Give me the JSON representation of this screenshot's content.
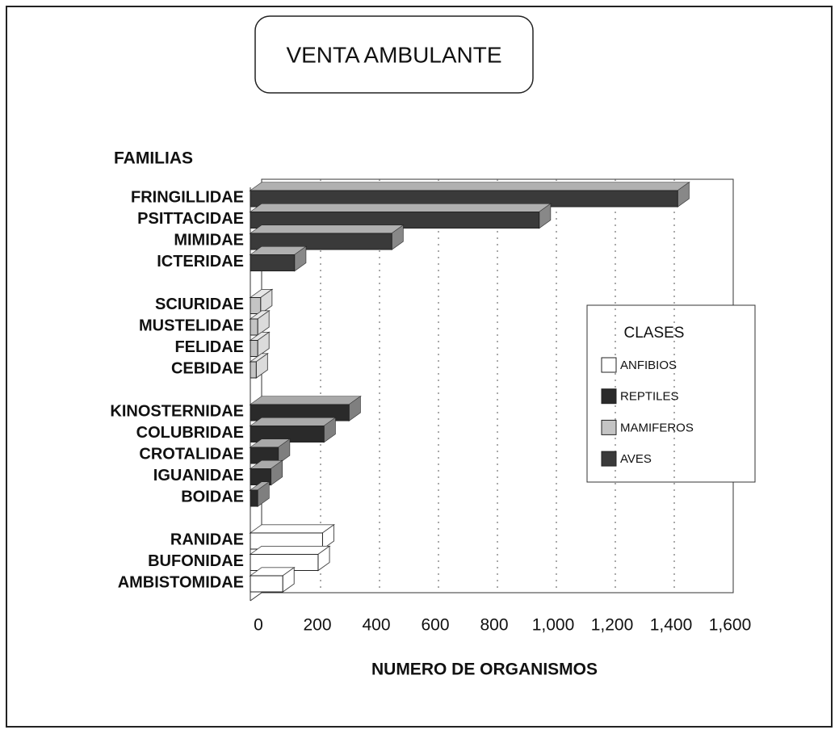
{
  "chart_data": {
    "type": "bar3d_horizontal",
    "title": "VENTA AMBULANTE",
    "ylabel": "FAMILIAS",
    "xlabel": "NUMERO DE ORGANISMOS",
    "legend_title": "CLASES",
    "legend": "right",
    "categories": [
      "FRINGILLIDAE",
      "PSITTACIDAE",
      "MIMIDAE",
      "ICTERIDAE",
      null,
      "SCIURIDAE",
      "MUSTELIDAE",
      "FELIDAE",
      "CEBIDAE",
      null,
      "KINOSTERNIDAE",
      "COLUBRIDAE",
      "CROTALIDAE",
      "IGUANIDAE",
      "BOIDAE",
      null,
      "RANIDAE",
      "BUFONIDAE",
      "AMBISTOMIDAE"
    ],
    "series": [
      {
        "name": "ANFIBIOS",
        "color": "#ffffff",
        "values": [
          null,
          null,
          null,
          null,
          null,
          null,
          null,
          null,
          null,
          null,
          null,
          null,
          null,
          null,
          null,
          null,
          245,
          230,
          110
        ]
      },
      {
        "name": "REPTILES",
        "color": "#2a2a2a",
        "values": [
          null,
          null,
          null,
          null,
          null,
          null,
          null,
          null,
          null,
          null,
          335,
          250,
          95,
          70,
          25,
          null,
          null,
          null,
          null
        ]
      },
      {
        "name": "MAMIFEROS",
        "color": "#c4c4c4",
        "values": [
          null,
          null,
          null,
          null,
          null,
          35,
          25,
          25,
          20,
          null,
          null,
          null,
          null,
          null,
          null,
          null,
          null,
          null,
          null
        ]
      },
      {
        "name": "AVES",
        "color": "#3a3a3a",
        "values": [
          1450,
          980,
          480,
          150,
          null,
          null,
          null,
          null,
          null,
          null,
          null,
          null,
          null,
          null,
          null,
          null,
          null,
          null,
          null
        ]
      }
    ],
    "xlim": [
      0,
      1600
    ],
    "xticks": [
      0,
      200,
      400,
      600,
      800,
      {
        "value": 1000,
        "label": "1,000"
      },
      {
        "value": 1200,
        "label": "1,200"
      },
      {
        "value": 1400,
        "label": "1,400"
      },
      {
        "value": 1600,
        "label": "1,600"
      }
    ],
    "grid": true
  }
}
